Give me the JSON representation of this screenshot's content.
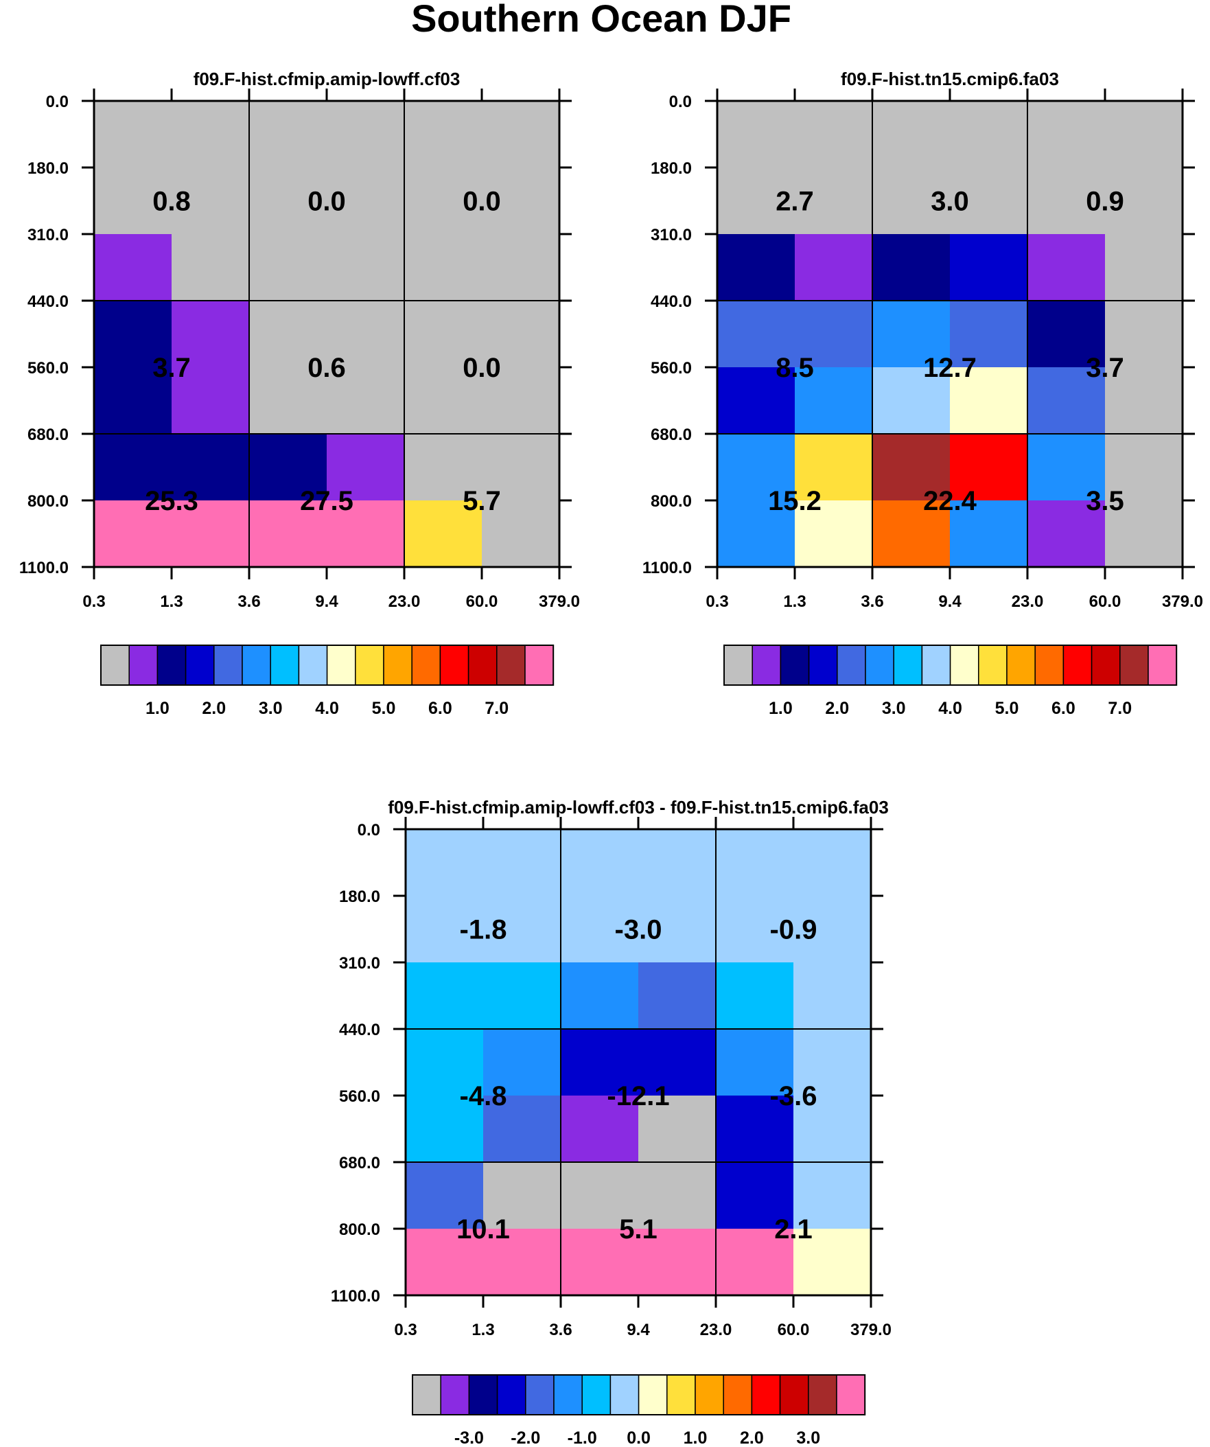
{
  "title": "Southern Ocean DJF",
  "chart_data": [
    {
      "type": "heatmap",
      "title": "f09.F-hist.cfmip.amip-lowff.cf03",
      "x_ticks": [
        "0.3",
        "1.3",
        "3.6",
        "9.4",
        "23.0",
        "60.0",
        "379.0"
      ],
      "y_ticks": [
        "0.0",
        "180.0",
        "310.0",
        "440.0",
        "560.0",
        "680.0",
        "800.0",
        "1100.0"
      ],
      "cells": [
        [
          0,
          0,
          0,
          0,
          0,
          0
        ],
        [
          0,
          0,
          0,
          0,
          0,
          0
        ],
        [
          1,
          0,
          0,
          0,
          0,
          0
        ],
        [
          2,
          1,
          0,
          0,
          0,
          0
        ],
        [
          2,
          1,
          0,
          0,
          0,
          0
        ],
        [
          2,
          2,
          2,
          1,
          0,
          0
        ],
        [
          15,
          15,
          15,
          15,
          9,
          0
        ]
      ],
      "box_values": [
        [
          "0.8",
          "0.0",
          "0.0"
        ],
        [
          "3.7",
          "0.6",
          "0.0"
        ],
        [
          "25.3",
          "27.5",
          "5.7"
        ]
      ],
      "colorbar": {
        "colors": [
          "#c0c0c0",
          "#8a2be2",
          "#00008b",
          "#0000cd",
          "#4169e1",
          "#1e90ff",
          "#00bfff",
          "#a0d2ff",
          "#ffffcc",
          "#ffe03b",
          "#ffa500",
          "#ff6a00",
          "#ff0000",
          "#cd0000",
          "#a52a2a",
          "#ff6eb4"
        ],
        "labels": [
          "1.0",
          "2.0",
          "3.0",
          "4.0",
          "5.0",
          "6.0",
          "7.0"
        ]
      }
    },
    {
      "type": "heatmap",
      "title": "f09.F-hist.tn15.cmip6.fa03",
      "x_ticks": [
        "0.3",
        "1.3",
        "3.6",
        "9.4",
        "23.0",
        "60.0",
        "379.0"
      ],
      "y_ticks": [
        "0.0",
        "180.0",
        "310.0",
        "440.0",
        "560.0",
        "680.0",
        "800.0",
        "1100.0"
      ],
      "cells": [
        [
          0,
          0,
          0,
          0,
          0,
          0
        ],
        [
          0,
          0,
          0,
          0,
          0,
          0
        ],
        [
          2,
          1,
          2,
          3,
          1,
          0
        ],
        [
          4,
          4,
          5,
          4,
          2,
          0
        ],
        [
          3,
          5,
          7,
          8,
          4,
          0
        ],
        [
          5,
          9,
          14,
          12,
          5,
          0
        ],
        [
          5,
          8,
          11,
          5,
          1,
          0
        ]
      ],
      "box_values": [
        [
          "2.7",
          "3.0",
          "0.9"
        ],
        [
          "8.5",
          "12.7",
          "3.7"
        ],
        [
          "15.2",
          "22.4",
          "3.5"
        ]
      ],
      "colorbar": {
        "colors": [
          "#c0c0c0",
          "#8a2be2",
          "#00008b",
          "#0000cd",
          "#4169e1",
          "#1e90ff",
          "#00bfff",
          "#a0d2ff",
          "#ffffcc",
          "#ffe03b",
          "#ffa500",
          "#ff6a00",
          "#ff0000",
          "#cd0000",
          "#a52a2a",
          "#ff6eb4"
        ],
        "labels": [
          "1.0",
          "2.0",
          "3.0",
          "4.0",
          "5.0",
          "6.0",
          "7.0"
        ]
      }
    },
    {
      "type": "heatmap",
      "title": "f09.F-hist.cfmip.amip-lowff.cf03 - f09.F-hist.tn15.cmip6.fa03",
      "x_ticks": [
        "0.3",
        "1.3",
        "3.6",
        "9.4",
        "23.0",
        "60.0",
        "379.0"
      ],
      "y_ticks": [
        "0.0",
        "180.0",
        "310.0",
        "440.0",
        "560.0",
        "680.0",
        "800.0",
        "1100.0"
      ],
      "cells": [
        [
          7,
          7,
          7,
          7,
          7,
          7
        ],
        [
          7,
          7,
          7,
          7,
          7,
          7
        ],
        [
          6,
          6,
          5,
          4,
          6,
          7
        ],
        [
          6,
          5,
          3,
          3,
          5,
          7
        ],
        [
          6,
          4,
          1,
          0,
          3,
          7
        ],
        [
          4,
          0,
          0,
          0,
          3,
          7
        ],
        [
          15,
          15,
          15,
          15,
          15,
          8
        ]
      ],
      "box_values": [
        [
          "-1.8",
          "-3.0",
          "-0.9"
        ],
        [
          "-4.8",
          "-12.1",
          "-3.6"
        ],
        [
          "10.1",
          "5.1",
          "2.1"
        ]
      ],
      "colorbar": {
        "colors": [
          "#c0c0c0",
          "#8a2be2",
          "#00008b",
          "#0000cd",
          "#4169e1",
          "#1e90ff",
          "#00bfff",
          "#a0d2ff",
          "#ffffcc",
          "#ffe03b",
          "#ffa500",
          "#ff6a00",
          "#ff0000",
          "#cd0000",
          "#a52a2a",
          "#ff6eb4"
        ],
        "labels": [
          "-3.0",
          "-2.0",
          "-1.0",
          "0.0",
          "1.0",
          "2.0",
          "3.0"
        ]
      }
    }
  ]
}
